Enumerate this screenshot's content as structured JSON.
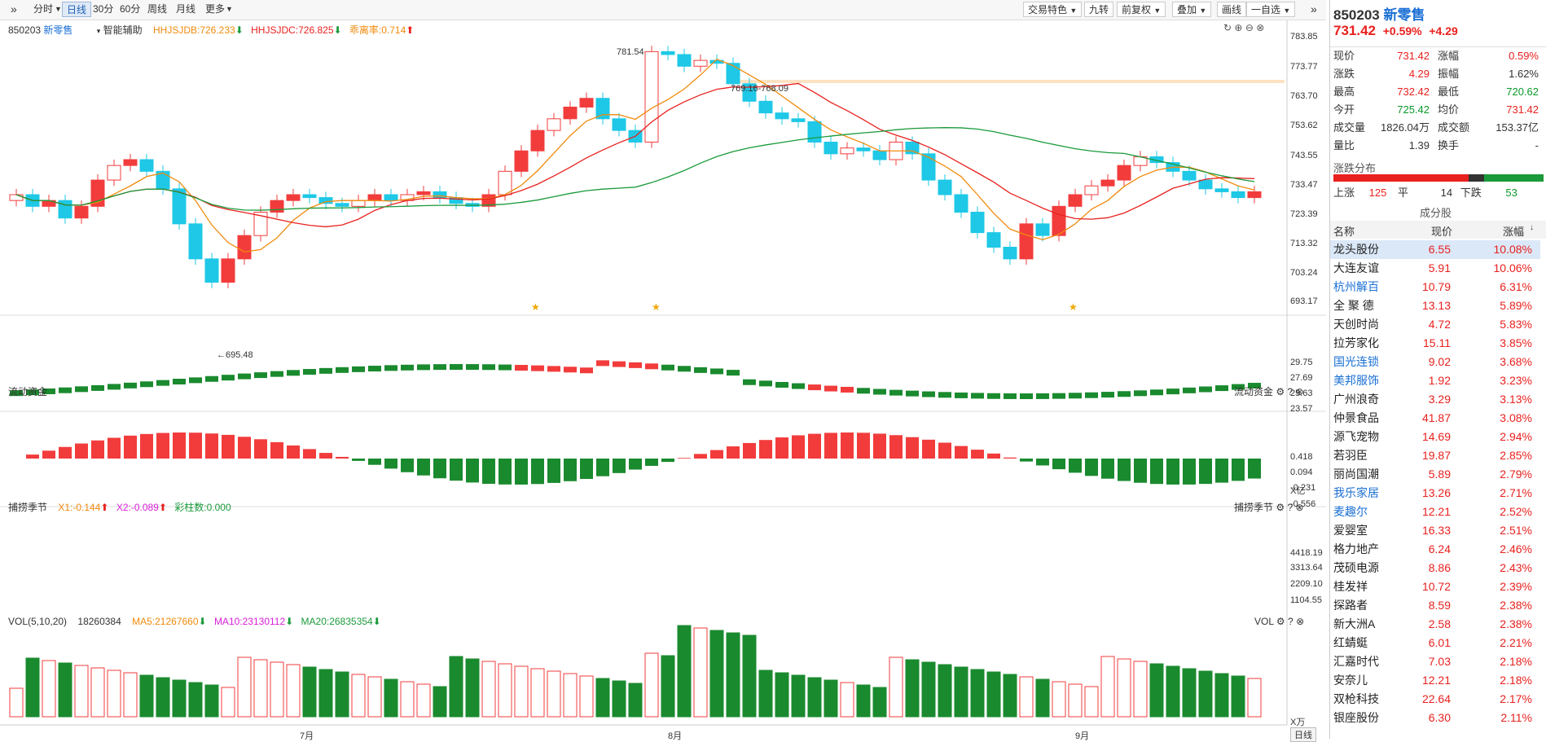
{
  "toolbar": {
    "left_items": [
      "分时",
      "日线",
      "30分",
      "60分",
      "周线",
      "月线",
      "更多"
    ],
    "active": "日线",
    "right_items": [
      "交易特色",
      "九转",
      "前复权",
      "叠加",
      "画线",
      "一自选"
    ]
  },
  "stock": {
    "code": "850203",
    "name": "新零售",
    "price": "731.42",
    "change_pct": "+0.59%",
    "change": "+4.29"
  },
  "quote": [
    {
      "l1": "现价",
      "v1": "731.42",
      "c1": "red",
      "l2": "涨幅",
      "v2": "0.59%",
      "c2": "red"
    },
    {
      "l1": "涨跌",
      "v1": "4.29",
      "c1": "red",
      "l2": "振幅",
      "v2": "1.62%",
      "c2": "black"
    },
    {
      "l1": "最高",
      "v1": "732.42",
      "c1": "red",
      "l2": "最低",
      "v2": "720.62",
      "c2": "green"
    },
    {
      "l1": "今开",
      "v1": "725.42",
      "c1": "green",
      "l2": "均价",
      "v2": "731.42",
      "c2": "red"
    },
    {
      "l1": "成交量",
      "v1": "1826.04万",
      "c1": "black",
      "l2": "成交额",
      "v2": "153.37亿",
      "c2": "black"
    },
    {
      "l1": "量比",
      "v1": "1.39",
      "c1": "black",
      "l2": "换手",
      "v2": "-",
      "c2": "black"
    }
  ],
  "distribution": {
    "title": "涨跌分布",
    "up_label": "上涨",
    "up": "125",
    "flat_label": "平",
    "flat": "14",
    "down_label": "下跌",
    "down": "53"
  },
  "constituents": {
    "title": "成分股",
    "headers": [
      "名称",
      "现价",
      "涨幅"
    ],
    "rows": [
      {
        "name": "龙头股份",
        "price": "6.55",
        "pct": "10.08%",
        "blue": false
      },
      {
        "name": "大连友谊",
        "price": "5.91",
        "pct": "10.06%",
        "blue": false
      },
      {
        "name": "杭州解百",
        "price": "10.79",
        "pct": "6.31%",
        "blue": true
      },
      {
        "name": "全 聚 德",
        "price": "13.13",
        "pct": "5.89%",
        "blue": false
      },
      {
        "name": "天创时尚",
        "price": "4.72",
        "pct": "5.83%",
        "blue": false
      },
      {
        "name": "拉芳家化",
        "price": "15.11",
        "pct": "3.85%",
        "blue": false
      },
      {
        "name": "国光连锁",
        "price": "9.02",
        "pct": "3.68%",
        "blue": true
      },
      {
        "name": "美邦服饰",
        "price": "1.92",
        "pct": "3.23%",
        "blue": true
      },
      {
        "name": "广州浪奇",
        "price": "3.29",
        "pct": "3.13%",
        "blue": false
      },
      {
        "name": "仲景食品",
        "price": "41.87",
        "pct": "3.08%",
        "blue": false
      },
      {
        "name": "源飞宠物",
        "price": "14.69",
        "pct": "2.94%",
        "blue": false
      },
      {
        "name": "若羽臣",
        "price": "19.87",
        "pct": "2.85%",
        "blue": false
      },
      {
        "name": "丽尚国潮",
        "price": "5.89",
        "pct": "2.79%",
        "blue": false
      },
      {
        "name": "我乐家居",
        "price": "13.26",
        "pct": "2.71%",
        "blue": true
      },
      {
        "name": "麦趣尔",
        "price": "12.21",
        "pct": "2.52%",
        "blue": true
      },
      {
        "name": "爱婴室",
        "price": "16.33",
        "pct": "2.51%",
        "blue": false
      },
      {
        "name": "格力地产",
        "price": "6.24",
        "pct": "2.46%",
        "blue": false
      },
      {
        "name": "茂硕电源",
        "price": "8.86",
        "pct": "2.43%",
        "blue": false
      },
      {
        "name": "桂发祥",
        "price": "10.72",
        "pct": "2.39%",
        "blue": false
      },
      {
        "name": "探路者",
        "price": "8.59",
        "pct": "2.38%",
        "blue": false
      },
      {
        "name": "新大洲A",
        "price": "2.58",
        "pct": "2.38%",
        "blue": false
      },
      {
        "name": "红蜻蜓",
        "price": "6.01",
        "pct": "2.21%",
        "blue": false
      },
      {
        "name": "汇嘉时代",
        "price": "7.03",
        "pct": "2.18%",
        "blue": false
      },
      {
        "name": "安奈儿",
        "price": "12.21",
        "pct": "2.18%",
        "blue": false
      },
      {
        "name": "双枪科技",
        "price": "22.64",
        "pct": "2.17%",
        "blue": false
      },
      {
        "name": "银座股份",
        "price": "6.30",
        "pct": "2.11%",
        "blue": false
      }
    ]
  },
  "main_panel": {
    "code": "850203",
    "name": "新零售",
    "assist": "智能辅助",
    "ind1": "HHJSJDB:726.233",
    "ind2": "HHJSJDC:726.825",
    "ind3": "乖离率:0.714",
    "high_label": "781.54",
    "low_label": "695.48",
    "range_label": "769.16-768.09",
    "y_ticks": [
      "783.85",
      "773.77",
      "763.70",
      "753.62",
      "743.55",
      "733.47",
      "723.39",
      "713.32",
      "703.24",
      "693.17"
    ]
  },
  "flow_panel": {
    "title": "流动资金",
    "y_ticks": [
      "29.75",
      "27.69",
      "25.63",
      "23.57"
    ],
    "unit": "X亿"
  },
  "season_panel": {
    "title": "捕捞季节",
    "x1": "X1:-0.144",
    "x2": "X2:-0.089",
    "bars": "彩柱数:0.000",
    "y_ticks": [
      "0.418",
      "0.094",
      "-0.231",
      "-0.556"
    ]
  },
  "vol_panel": {
    "title": "VOL(5,10,20)",
    "vol": "18260384",
    "ma5": "MA5:21267660",
    "ma10": "MA10:23130112",
    "ma20": "MA20:26835354",
    "right_title": "VOL",
    "y_ticks": [
      "4418.19",
      "3313.64",
      "2209.10",
      "1104.55"
    ],
    "unit": "X万"
  },
  "x_axis": {
    "months": [
      "7月",
      "8月",
      "9月"
    ],
    "mode": "日线"
  },
  "colors": {
    "up": "#f23c3c",
    "down": "#1ec8e6",
    "ma_red": "#e8211e",
    "ma_orange": "#f08a0c",
    "ma_green": "#1a9a3a",
    "vol_down": "#1a8a2e"
  }
}
